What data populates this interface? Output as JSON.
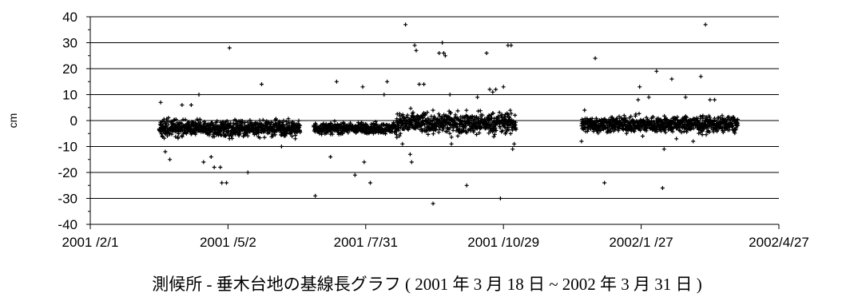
{
  "chart_data": {
    "type": "scatter",
    "title": "",
    "caption": "測候所 - 垂木台地の基線長グラフ ( 2001 年 3 月 18 日 ~ 2002 年 3 月 31 日 )",
    "ylabel": "cm",
    "xlabel": "",
    "ylim": [
      -40,
      40
    ],
    "yticks": [
      40,
      30,
      20,
      10,
      0,
      -10,
      -20,
      -30,
      -40
    ],
    "xlim": [
      "2001-02-01",
      "2002-04-27"
    ],
    "xticks": [
      "2001-02-01",
      "2001-05-02",
      "2001-07-31",
      "2001-10-29",
      "2002-01-27",
      "2002-04-27"
    ],
    "xtick_labels": [
      "2001 /2/1",
      "2001 /5/2",
      "2001 /7/31",
      "2001 /10/29",
      "2002/1 /27",
      "2002/4/27"
    ],
    "grid": "horizontal",
    "marker": "+",
    "dense_segments": [
      {
        "start": "2001-03-18",
        "end": "2001-06-18",
        "center": -3,
        "spread": 3
      },
      {
        "start": "2001-06-27",
        "end": "2001-08-20",
        "center": -3,
        "spread": 2
      },
      {
        "start": "2001-08-20",
        "end": "2001-11-06",
        "center": -1,
        "spread": 4
      },
      {
        "start": "2001-12-19",
        "end": "2002-03-31",
        "center": -1.5,
        "spread": 3
      }
    ],
    "outliers": [
      {
        "x": "2001-03-19",
        "y": 7
      },
      {
        "x": "2001-03-20",
        "y": -6
      },
      {
        "x": "2001-03-22",
        "y": -12
      },
      {
        "x": "2001-03-25",
        "y": -15
      },
      {
        "x": "2001-04-02",
        "y": 6
      },
      {
        "x": "2001-04-08",
        "y": 6
      },
      {
        "x": "2001-04-13",
        "y": 10
      },
      {
        "x": "2001-04-16",
        "y": -16
      },
      {
        "x": "2001-04-21",
        "y": -14
      },
      {
        "x": "2001-04-23",
        "y": -18
      },
      {
        "x": "2001-04-27",
        "y": -18
      },
      {
        "x": "2001-04-28",
        "y": -24
      },
      {
        "x": "2001-05-01",
        "y": -24
      },
      {
        "x": "2001-05-03",
        "y": 28
      },
      {
        "x": "2001-05-15",
        "y": -20
      },
      {
        "x": "2001-05-24",
        "y": 14
      },
      {
        "x": "2001-06-06",
        "y": -10
      },
      {
        "x": "2001-06-28",
        "y": -29
      },
      {
        "x": "2001-07-08",
        "y": -14
      },
      {
        "x": "2001-07-12",
        "y": 15
      },
      {
        "x": "2001-07-24",
        "y": -21
      },
      {
        "x": "2001-07-29",
        "y": 13
      },
      {
        "x": "2001-07-30",
        "y": -16
      },
      {
        "x": "2001-08-03",
        "y": -24
      },
      {
        "x": "2001-08-12",
        "y": 10
      },
      {
        "x": "2001-08-14",
        "y": 15
      },
      {
        "x": "2001-08-24",
        "y": -9
      },
      {
        "x": "2001-08-26",
        "y": 37
      },
      {
        "x": "2001-08-29",
        "y": -13
      },
      {
        "x": "2001-08-30",
        "y": -16
      },
      {
        "x": "2001-09-01",
        "y": 29
      },
      {
        "x": "2001-09-02",
        "y": 27
      },
      {
        "x": "2001-09-04",
        "y": 14
      },
      {
        "x": "2001-09-07",
        "y": 14
      },
      {
        "x": "2001-09-13",
        "y": -32
      },
      {
        "x": "2001-09-17",
        "y": 26
      },
      {
        "x": "2001-09-19",
        "y": 30
      },
      {
        "x": "2001-09-20",
        "y": 26
      },
      {
        "x": "2001-09-21",
        "y": 25
      },
      {
        "x": "2001-09-24",
        "y": 10
      },
      {
        "x": "2001-09-25",
        "y": -9
      },
      {
        "x": "2001-10-05",
        "y": -25
      },
      {
        "x": "2001-10-12",
        "y": 9
      },
      {
        "x": "2001-10-18",
        "y": 26
      },
      {
        "x": "2001-10-20",
        "y": 12
      },
      {
        "x": "2001-10-22",
        "y": 11
      },
      {
        "x": "2001-10-24",
        "y": 12
      },
      {
        "x": "2001-10-27",
        "y": -30
      },
      {
        "x": "2001-10-29",
        "y": 13
      },
      {
        "x": "2001-11-01",
        "y": 29
      },
      {
        "x": "2001-11-03",
        "y": 29
      },
      {
        "x": "2001-11-04",
        "y": -11
      },
      {
        "x": "2001-11-05",
        "y": -9
      },
      {
        "x": "2001-12-19",
        "y": -8
      },
      {
        "x": "2001-12-21",
        "y": 4
      },
      {
        "x": "2001-12-28",
        "y": 24
      },
      {
        "x": "2002-01-03",
        "y": -24
      },
      {
        "x": "2002-01-25",
        "y": 8
      },
      {
        "x": "2002-01-26",
        "y": 13
      },
      {
        "x": "2002-01-28",
        "y": -6
      },
      {
        "x": "2002-02-01",
        "y": 9
      },
      {
        "x": "2002-02-06",
        "y": 19
      },
      {
        "x": "2002-02-10",
        "y": -26
      },
      {
        "x": "2002-02-11",
        "y": -11
      },
      {
        "x": "2002-02-16",
        "y": 16
      },
      {
        "x": "2002-02-19",
        "y": -7
      },
      {
        "x": "2002-02-25",
        "y": 9
      },
      {
        "x": "2002-03-02",
        "y": -8
      },
      {
        "x": "2002-03-07",
        "y": 17
      },
      {
        "x": "2002-03-10",
        "y": 37
      },
      {
        "x": "2002-03-13",
        "y": 8
      },
      {
        "x": "2002-03-16",
        "y": 8
      }
    ]
  }
}
